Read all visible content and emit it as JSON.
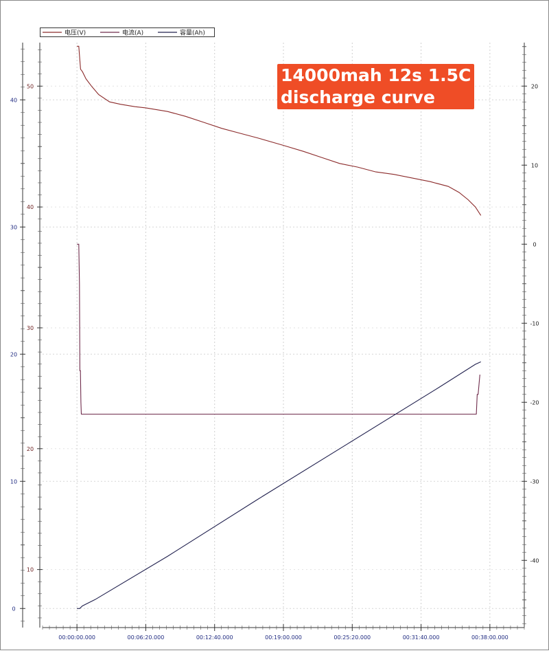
{
  "chart_data": {
    "type": "line",
    "title": "",
    "legend": {
      "placement": "top-left",
      "entries": [
        {
          "label": "电压(V)",
          "color": "#8b2a2a"
        },
        {
          "label": "电流(A)",
          "color": "#6e2a4a"
        },
        {
          "label": "容量(Ah)",
          "color": "#20204e"
        }
      ]
    },
    "annotation": [
      "14000mah 12s 1.5C",
      "discharge curve"
    ],
    "x_ticks": [
      "00:00:00.000",
      "00:06:20.000",
      "00:12:40.000",
      "00:19:00.000",
      "00:25:20.000",
      "00:31:40.000",
      "00:38:00.000"
    ],
    "x_tick_seconds": [
      0,
      380,
      760,
      1140,
      1520,
      1900,
      2280
    ],
    "xlim_seconds": [
      -190,
      2470
    ],
    "axes": {
      "capacity": {
        "side": "left-outer",
        "ticks": [
          0,
          10,
          20,
          30,
          40
        ],
        "color": "#1f2a80",
        "ylim": [
          -1.5,
          44.5
        ]
      },
      "voltage": {
        "side": "left-inner",
        "ticks": [
          10,
          20,
          30,
          40,
          50
        ],
        "color": "#6a1b1b",
        "ylim": [
          5.2,
          53.6
        ]
      },
      "current": {
        "side": "right",
        "ticks": [
          -40,
          -30,
          -20,
          -10,
          0,
          10,
          20
        ],
        "color": "#1a1a1a",
        "ylim": [
          -48.5,
          25.5
        ]
      }
    },
    "grid": true,
    "series": [
      {
        "name": "电压(V)",
        "axis": "voltage",
        "color": "#8b2a2a",
        "x": [
          0,
          10,
          20,
          30,
          50,
          80,
          120,
          180,
          240,
          320,
          380,
          500,
          600,
          700,
          800,
          900,
          1000,
          1140,
          1250,
          1350,
          1450,
          1550,
          1650,
          1750,
          1850,
          1950,
          2050,
          2110,
          2160,
          2200,
          2230
        ],
        "y": [
          53.3,
          53.3,
          51.4,
          51.2,
          50.6,
          50.0,
          49.3,
          48.7,
          48.5,
          48.3,
          48.2,
          47.9,
          47.5,
          47.0,
          46.5,
          46.1,
          45.7,
          45.1,
          44.6,
          44.1,
          43.6,
          43.3,
          42.9,
          42.7,
          42.4,
          42.1,
          41.7,
          41.2,
          40.6,
          40.0,
          39.3
        ]
      },
      {
        "name": "电流(A)",
        "axis": "current",
        "color": "#6e2a4a",
        "x": [
          0,
          10,
          14,
          16,
          19,
          22,
          24,
          2200,
          2205,
          2210,
          2215,
          2225
        ],
        "y": [
          0,
          0,
          -5,
          -16,
          -16,
          -20,
          -21.5,
          -21.5,
          -21.5,
          -19,
          -19,
          -16.5
        ]
      },
      {
        "name": "容量(Ah)",
        "axis": "capacity",
        "color": "#20204e",
        "x": [
          0,
          15,
          30,
          100,
          500,
          1000,
          1500,
          2000,
          2200,
          2230
        ],
        "y": [
          0,
          0,
          0.2,
          0.7,
          4.1,
          8.6,
          13.0,
          17.4,
          19.2,
          19.4
        ]
      }
    ]
  }
}
